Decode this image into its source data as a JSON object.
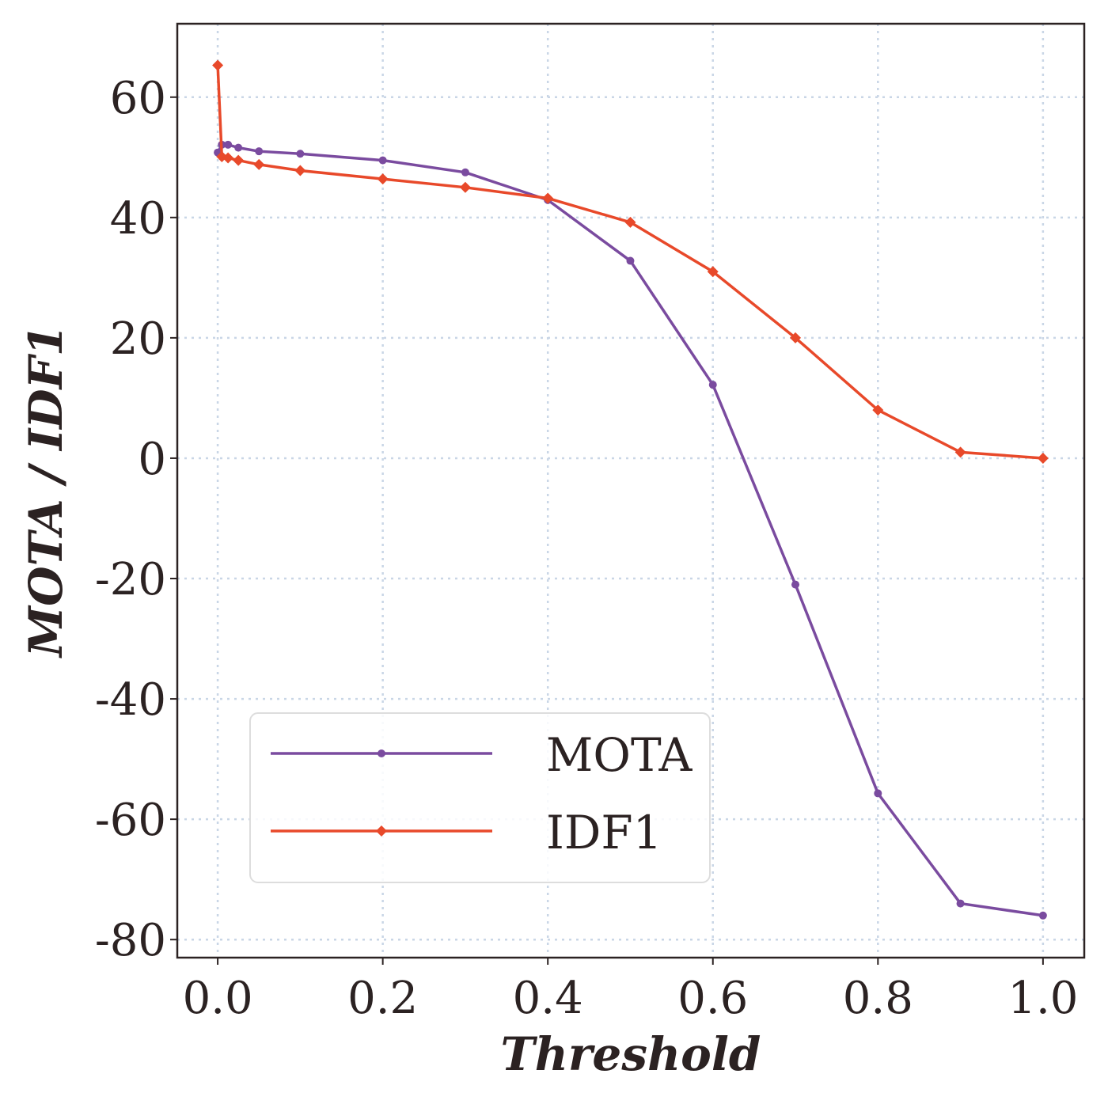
{
  "chart_data": {
    "type": "line",
    "title": "",
    "xlabel": "Threshold",
    "ylabel": "MOTA / IDF1",
    "xlim": [
      -0.049,
      1.05
    ],
    "ylim": [
      -83,
      72.2
    ],
    "xticks": [
      0.0,
      0.2,
      0.4,
      0.6,
      0.8,
      1.0
    ],
    "xtick_labels": [
      "0.0",
      "0.2",
      "0.4",
      "0.6",
      "0.8",
      "1.0"
    ],
    "yticks": [
      60,
      40,
      20,
      0,
      -20,
      -40,
      -60,
      -80
    ],
    "ytick_labels": [
      "60",
      "40",
      "20",
      "0",
      "-20",
      "-40",
      "-60",
      "-80"
    ],
    "grid": true,
    "legend_position": "bottom-left",
    "series": [
      {
        "name": "MOTA",
        "color": "#7a4b9f",
        "marker": "circle",
        "x": [
          0.0,
          0.005,
          0.0125,
          0.025,
          0.05,
          0.1,
          0.2,
          0.3,
          0.4,
          0.5,
          0.6,
          0.7,
          0.8,
          0.9,
          1.0
        ],
        "y": [
          50.8,
          52.1,
          52.1,
          51.6,
          51.0,
          50.6,
          49.5,
          47.5,
          42.9,
          32.8,
          12.2,
          -21.0,
          -55.7,
          -74.0,
          -76.0
        ]
      },
      {
        "name": "IDF1",
        "color": "#e8492a",
        "marker": "diamond",
        "x": [
          0.0,
          0.005,
          0.0125,
          0.025,
          0.05,
          0.1,
          0.2,
          0.3,
          0.4,
          0.5,
          0.6,
          0.7,
          0.8,
          0.9,
          1.0
        ],
        "y": [
          65.3,
          50.1,
          49.9,
          49.5,
          48.8,
          47.8,
          46.4,
          45.0,
          43.2,
          39.2,
          31.0,
          20.0,
          8.0,
          1.0,
          0.0
        ]
      }
    ]
  }
}
